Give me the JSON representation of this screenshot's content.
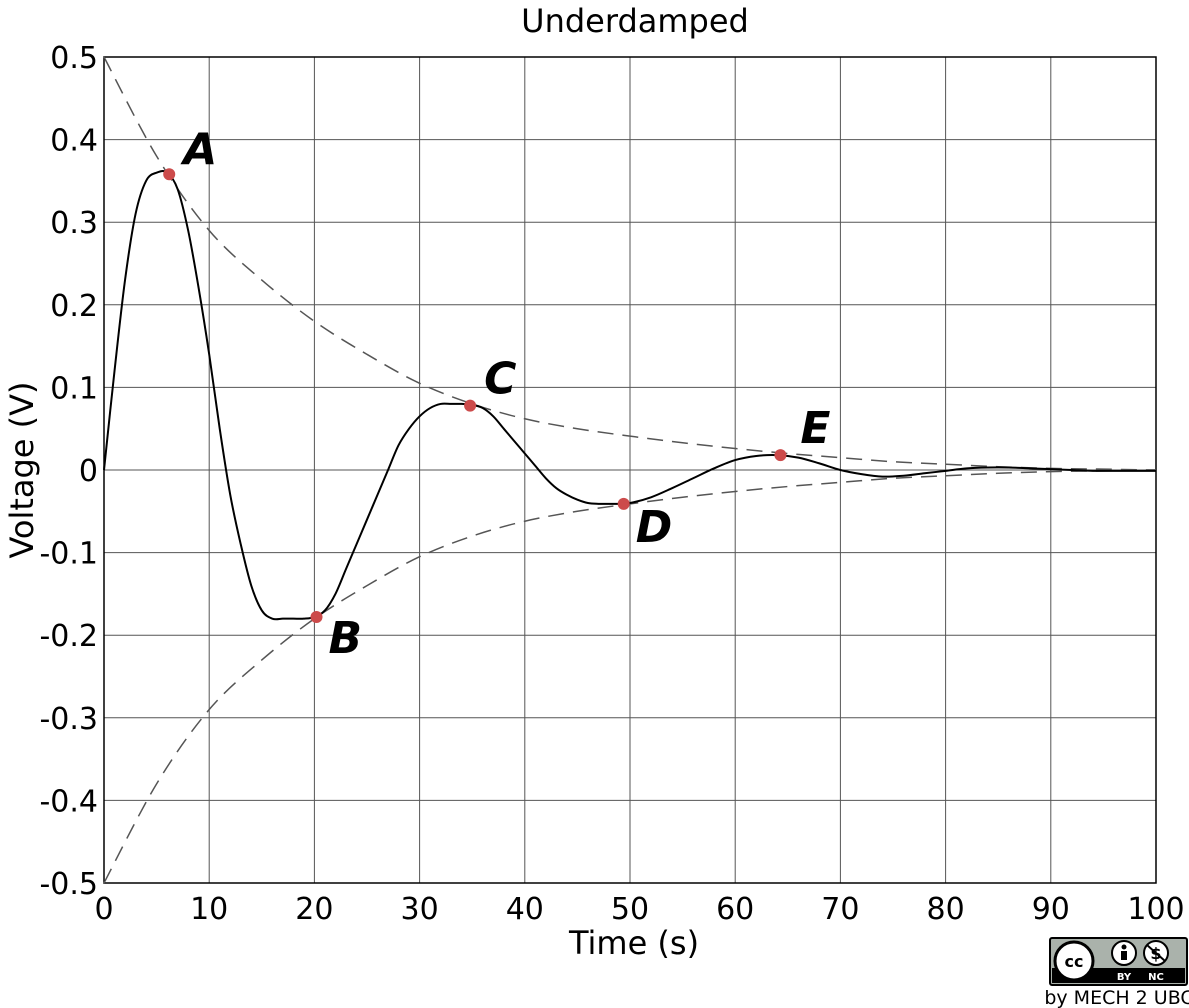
{
  "chart_data": {
    "type": "line",
    "title": "Underdamped",
    "xlabel": "Time (s)",
    "ylabel": "Voltage (V)",
    "xlim": [
      0,
      100
    ],
    "ylim": [
      -0.5,
      0.5
    ],
    "xticks": [
      0,
      10,
      20,
      30,
      40,
      50,
      60,
      70,
      80,
      90,
      100
    ],
    "yticks": [
      0.5,
      0.4,
      0.3,
      0.2,
      0.1,
      0,
      -0.1,
      -0.2,
      -0.3,
      -0.4,
      -0.5
    ],
    "xtick_labels": [
      "0",
      "10",
      "20",
      "30",
      "40",
      "50",
      "60",
      "70",
      "80",
      "90",
      "100"
    ],
    "ytick_labels": [
      "0.5",
      "0.4",
      "0.3",
      "0.2",
      "0.1",
      "0",
      "-0.1",
      "-0.2",
      "-0.3",
      "-0.4",
      "-0.5"
    ],
    "grid": true,
    "series": [
      {
        "style": "solid",
        "color": "#000000",
        "x": [
          0,
          1,
          2,
          3,
          4,
          5,
          6,
          7,
          8,
          9,
          10,
          11,
          12,
          13,
          14,
          15,
          16,
          17,
          18,
          19,
          20,
          21,
          22,
          23,
          24,
          25,
          26,
          27,
          28,
          29,
          30,
          31,
          32,
          33,
          34,
          35,
          36,
          37,
          38,
          39,
          40,
          41,
          42,
          43,
          44,
          45,
          46,
          47,
          48,
          49,
          50,
          52,
          54,
          56,
          58,
          60,
          62,
          64,
          66,
          68,
          70,
          72,
          74,
          76,
          78,
          80,
          82,
          84,
          86,
          88,
          90,
          92,
          94,
          96,
          98,
          100
        ],
        "y": [
          0,
          0.12,
          0.23,
          0.31,
          0.35,
          0.36,
          0.36,
          0.34,
          0.29,
          0.22,
          0.14,
          0.05,
          -0.03,
          -0.09,
          -0.14,
          -0.17,
          -0.18,
          -0.18,
          -0.18,
          -0.18,
          -0.178,
          -0.17,
          -0.15,
          -0.12,
          -0.09,
          -0.06,
          -0.03,
          0,
          0.03,
          0.05,
          0.065,
          0.075,
          0.08,
          0.08,
          0.08,
          0.079,
          0.075,
          0.065,
          0.05,
          0.035,
          0.02,
          0.005,
          -0.01,
          -0.022,
          -0.03,
          -0.036,
          -0.04,
          -0.041,
          -0.041,
          -0.041,
          -0.04,
          -0.033,
          -0.022,
          -0.01,
          0.002,
          0.012,
          0.017,
          0.018,
          0.015,
          0.008,
          0,
          -0.005,
          -0.008,
          -0.007,
          -0.004,
          -0.001,
          0.002,
          0.003,
          0.003,
          0.002,
          0.001,
          0,
          -0.001,
          -0.001,
          -0.001,
          -0.001
        ]
      },
      {
        "style": "dashed",
        "color": "#555555",
        "x": [
          0,
          5,
          10,
          15,
          20,
          25,
          30,
          35,
          40,
          45,
          50,
          55,
          60,
          65,
          70,
          75,
          80,
          85,
          90,
          95,
          100
        ],
        "y": [
          0.5,
          0.38,
          0.29,
          0.23,
          0.18,
          0.14,
          0.105,
          0.08,
          0.062,
          0.05,
          0.041,
          0.033,
          0.026,
          0.02,
          0.015,
          0.01,
          0.007,
          0.004,
          0.002,
          0.001,
          0
        ]
      },
      {
        "style": "dashed",
        "color": "#555555",
        "x": [
          0,
          5,
          10,
          15,
          20,
          25,
          30,
          35,
          40,
          45,
          50,
          55,
          60,
          65,
          70,
          75,
          80,
          85,
          90,
          95,
          100
        ],
        "y": [
          -0.5,
          -0.38,
          -0.29,
          -0.23,
          -0.18,
          -0.14,
          -0.105,
          -0.08,
          -0.062,
          -0.05,
          -0.041,
          -0.033,
          -0.026,
          -0.02,
          -0.015,
          -0.01,
          -0.007,
          -0.004,
          -0.002,
          -0.001,
          0
        ]
      }
    ],
    "points": [
      {
        "label": "A",
        "x": 6.2,
        "y": 0.358
      },
      {
        "label": "B",
        "x": 20.2,
        "y": -0.178
      },
      {
        "label": "C",
        "x": 34.8,
        "y": 0.078
      },
      {
        "label": "D",
        "x": 49.4,
        "y": -0.041
      },
      {
        "label": "E",
        "x": 64.3,
        "y": 0.018
      }
    ],
    "point_color": "#cc4b4b"
  },
  "credit": {
    "license_cc": "cc",
    "license_by": "BY",
    "license_nc": "NC",
    "text": "by MECH 2 UBC"
  }
}
